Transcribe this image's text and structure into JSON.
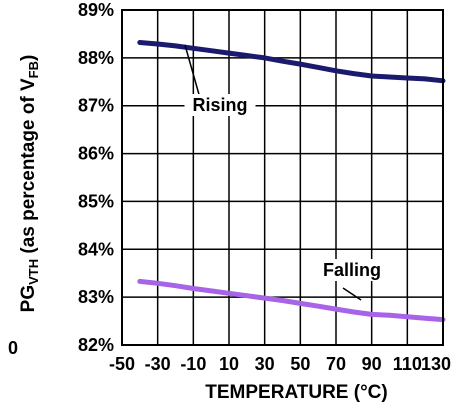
{
  "chart_data": {
    "type": "line",
    "title": "",
    "xlabel": "TEMPERATURE (°C)",
    "ylabel": "PGVTH (as percentage of VFB)",
    "ylabel_parts": {
      "main": "PG",
      "sub1": "VTH",
      "middle": " (as percentage of V",
      "sub2": "FB",
      "end": ")"
    },
    "x_ticks": [
      -50,
      -30,
      -10,
      10,
      30,
      50,
      70,
      90,
      110,
      130
    ],
    "x_tick_labels": [
      "-50",
      "-30",
      "-10",
      "10",
      "30",
      "50",
      "70",
      "90",
      "110",
      "130"
    ],
    "y_ticks": [
      82,
      83,
      84,
      85,
      86,
      87,
      88,
      89
    ],
    "y_tick_labels": [
      "82%",
      "83%",
      "84%",
      "85%",
      "86%",
      "87%",
      "88%",
      "89%"
    ],
    "xlim": [
      -50,
      130
    ],
    "ylim": [
      82,
      89
    ],
    "grid": true,
    "edge_label": "0",
    "series": [
      {
        "name": "Rising",
        "color": "#1a1a6e",
        "x": [
          -40,
          -30,
          -20,
          -10,
          0,
          10,
          20,
          30,
          40,
          50,
          60,
          70,
          80,
          90,
          100,
          110,
          120,
          130
        ],
        "y": [
          88.32,
          88.29,
          88.25,
          88.2,
          88.15,
          88.1,
          88.05,
          88.0,
          87.93,
          87.87,
          87.8,
          87.73,
          87.67,
          87.62,
          87.6,
          87.58,
          87.56,
          87.52
        ]
      },
      {
        "name": "Falling",
        "color": "#a864e6",
        "x": [
          -40,
          -30,
          -20,
          -10,
          0,
          10,
          20,
          30,
          40,
          50,
          60,
          70,
          80,
          90,
          100,
          110,
          120,
          130
        ],
        "y": [
          83.33,
          83.29,
          83.24,
          83.18,
          83.13,
          83.08,
          83.03,
          82.98,
          82.93,
          82.87,
          82.81,
          82.75,
          82.69,
          82.64,
          82.62,
          82.59,
          82.56,
          82.53
        ]
      }
    ],
    "annotations": [
      {
        "series": "Rising",
        "text": "Rising"
      },
      {
        "series": "Falling",
        "text": "Falling"
      }
    ]
  }
}
